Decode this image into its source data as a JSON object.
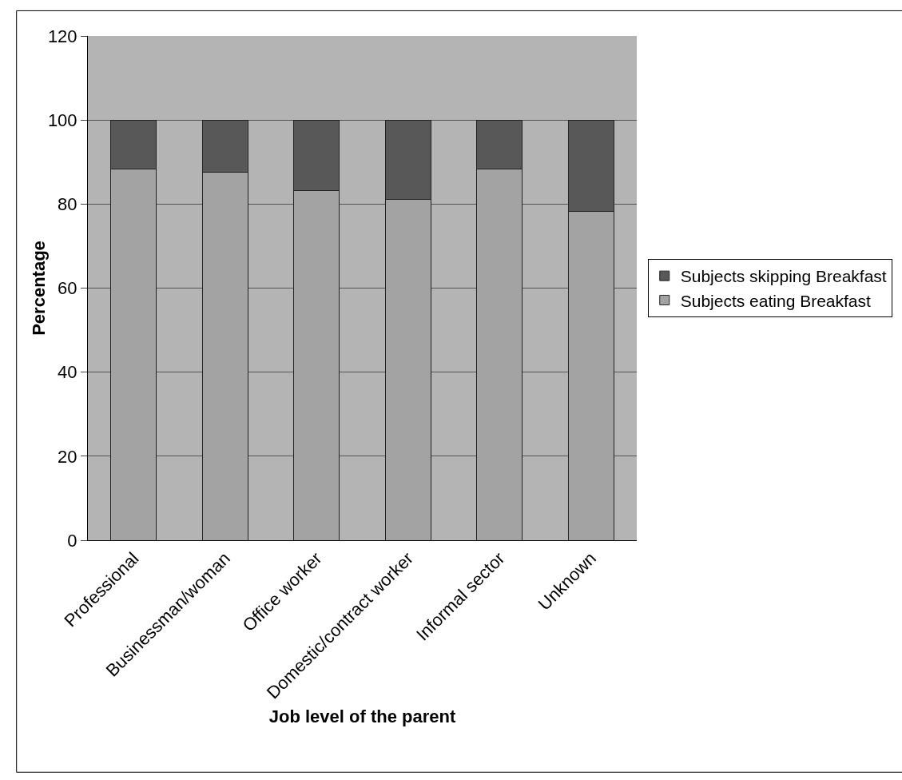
{
  "chart_data": {
    "type": "bar",
    "stacked": true,
    "xlabel": "Job level of the parent",
    "ylabel": "Percentage",
    "categories": [
      "Professional",
      "Businessman/woman",
      "Office worker",
      "Domestic/contract worker",
      "Informal sector",
      "Unknown"
    ],
    "series": [
      {
        "name": "Subjects eating Breakfast",
        "color": "#a3a3a3",
        "values": [
          88.3,
          87.6,
          83.2,
          81.2,
          88.4,
          78.2
        ]
      },
      {
        "name": "Subjects skipping Breakfast",
        "color": "#585858",
        "values": [
          11.7,
          12.4,
          16.8,
          18.8,
          11.6,
          21.8
        ]
      }
    ],
    "ylim": [
      0,
      120
    ],
    "yticks": [
      0,
      20,
      40,
      60,
      80,
      100,
      120
    ],
    "grid": "y",
    "legend": "right"
  }
}
